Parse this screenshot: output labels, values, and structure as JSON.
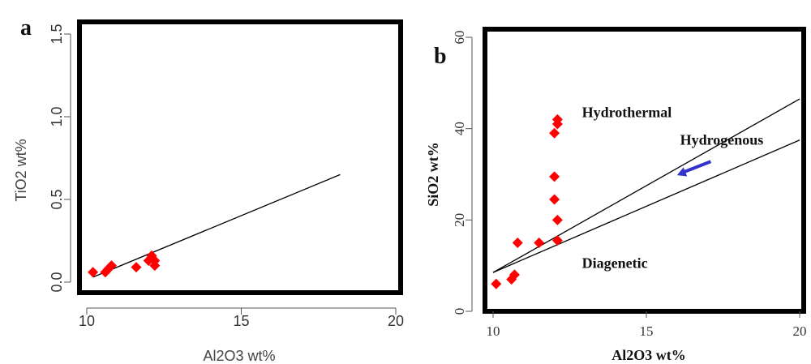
{
  "chart_data": [
    {
      "type": "scatter",
      "panel_label": "a",
      "xlabel": "Al2O3 wt%",
      "ylabel": "TiO2 wt%",
      "xlim": [
        10,
        20
      ],
      "ylim": [
        0,
        1.5
      ],
      "x_ticks": [
        "10",
        "15",
        "20"
      ],
      "y_ticks": [
        "0.0",
        "0.5",
        "1.0",
        "1.5"
      ],
      "point_color": "#ff0000",
      "series": [
        {
          "points": [
            {
              "x": 10.2,
              "y": 0.06
            },
            {
              "x": 10.6,
              "y": 0.06
            },
            {
              "x": 10.7,
              "y": 0.08
            },
            {
              "x": 10.8,
              "y": 0.1
            },
            {
              "x": 11.6,
              "y": 0.09
            },
            {
              "x": 12.0,
              "y": 0.13
            },
            {
              "x": 12.1,
              "y": 0.16
            },
            {
              "x": 12.2,
              "y": 0.1
            },
            {
              "x": 12.2,
              "y": 0.13
            },
            {
              "x": 12.1,
              "y": 0.15
            }
          ]
        }
      ],
      "lines": [
        {
          "x1": 10.2,
          "y1": 0.03,
          "x2": 18.2,
          "y2": 0.65
        }
      ]
    },
    {
      "type": "scatter",
      "panel_label": "b",
      "xlabel": "Al2O3 wt%",
      "ylabel": "SiO2 wt%",
      "xlim": [
        10,
        20
      ],
      "ylim": [
        0,
        60
      ],
      "x_ticks": [
        "10",
        "15",
        "20"
      ],
      "y_ticks": [
        "0",
        "20",
        "40",
        "60"
      ],
      "point_color": "#ff0000",
      "arrow_color": "#3333cc",
      "series": [
        {
          "points": [
            {
              "x": 10.1,
              "y": 6
            },
            {
              "x": 10.6,
              "y": 7
            },
            {
              "x": 10.7,
              "y": 8
            },
            {
              "x": 10.8,
              "y": 15
            },
            {
              "x": 11.5,
              "y": 15
            },
            {
              "x": 12.1,
              "y": 15.5
            },
            {
              "x": 12.1,
              "y": 20
            },
            {
              "x": 12.0,
              "y": 24.5
            },
            {
              "x": 12.0,
              "y": 29.5
            },
            {
              "x": 12.0,
              "y": 39
            },
            {
              "x": 12.1,
              "y": 41
            },
            {
              "x": 12.1,
              "y": 42
            }
          ]
        }
      ],
      "lines": [
        {
          "x1": 10.0,
          "y1": 8.5,
          "x2": 20.0,
          "y2": 46.5
        },
        {
          "x1": 10.0,
          "y1": 8.5,
          "x2": 20.0,
          "y2": 37.5
        }
      ],
      "annotations": [
        {
          "text": "Hydrothermal",
          "x": 12.9,
          "y": 42.5
        },
        {
          "text": "Hydrogenous",
          "x": 16.1,
          "y": 36.5
        },
        {
          "text": "Diagenetic",
          "x": 12.9,
          "y": 9.5
        }
      ],
      "arrow": {
        "x1": 17.1,
        "y1": 32.8,
        "x2": 16.0,
        "y2": 29.8
      }
    }
  ]
}
